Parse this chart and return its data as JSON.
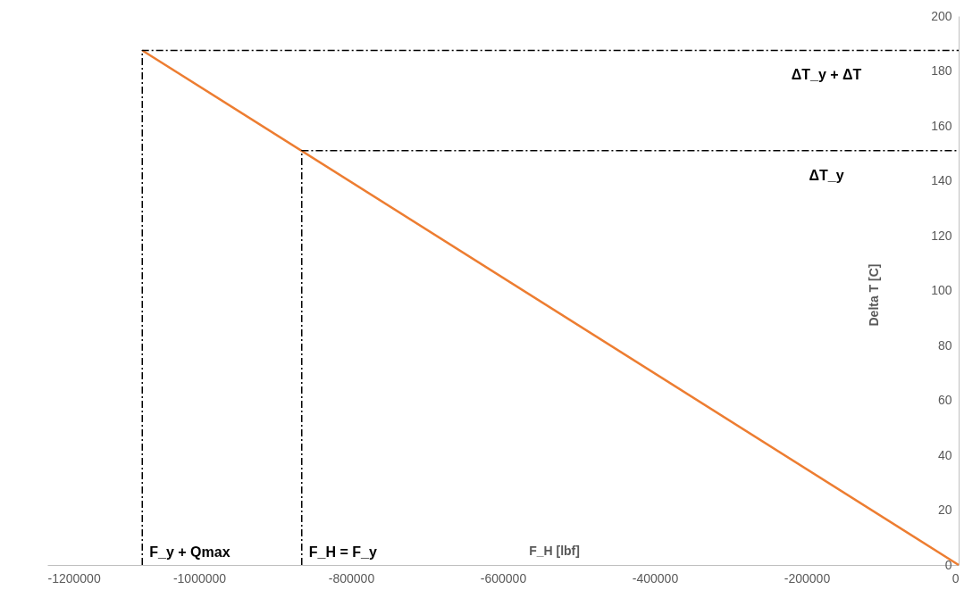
{
  "chart_data": {
    "type": "line",
    "xlabel": "F_H [lbf]",
    "ylabel": "Delta T [C]",
    "series": [
      {
        "color": "#ed7d31",
        "x": [
          -1075000,
          0
        ],
        "values": [
          187.5,
          0
        ],
        "line_style": "solid"
      },
      {
        "color": "#000000",
        "x": [
          -1075000,
          -1075000,
          0
        ],
        "values": [
          0,
          187.5,
          187.5
        ],
        "line_style": "dashed"
      },
      {
        "color": "#000000",
        "x": [
          -865000,
          -865000,
          0
        ],
        "values": [
          0,
          151,
          151
        ],
        "line_style": "dashed"
      }
    ],
    "annotations": [
      {
        "text": "ΔT_y + ΔT",
        "x": -174000,
        "y": 187.5
      },
      {
        "text": "ΔT_y",
        "x": -174000,
        "y": 151
      },
      {
        "text": "F_y + Qmax",
        "x": -1075000,
        "y": 0
      },
      {
        "text": "F_H = F_y",
        "x": -865000,
        "y": 0
      }
    ],
    "xlim": [
      -1200000,
      0
    ],
    "xticks": [
      -1200000,
      -1000000,
      -800000,
      -600000,
      -400000,
      -200000,
      0
    ],
    "ylim": [
      0,
      200
    ],
    "yticks": [
      0,
      20,
      40,
      60,
      80,
      100,
      120,
      140,
      160,
      180,
      200
    ],
    "grid": false,
    "marker": "none"
  }
}
